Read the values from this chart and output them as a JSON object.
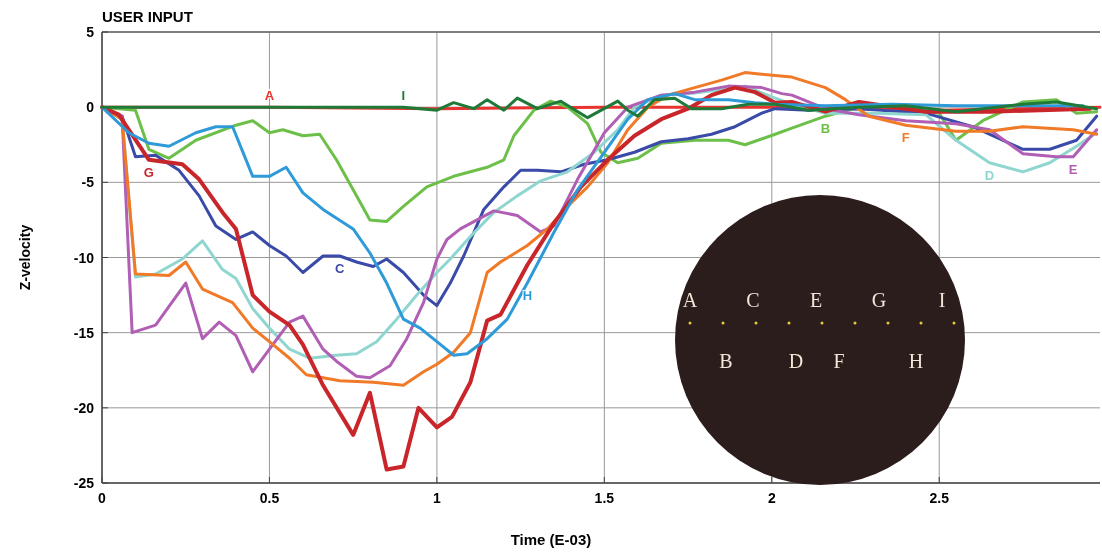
{
  "chart_data": {
    "type": "line",
    "title": "USER INPUT",
    "xlabel": "Time (E-03)",
    "ylabel": "Z-velocity",
    "xlim": [
      0,
      2.98
    ],
    "xticks": [
      0,
      0.5,
      1,
      1.5,
      2,
      2.5
    ],
    "ylim": [
      -25,
      5
    ],
    "yticks": [
      5,
      0,
      -5,
      -10,
      -15,
      -20,
      -25
    ],
    "grid": true,
    "legend": false,
    "marker": "none",
    "line_style": "solid",
    "series": [
      {
        "name": "A",
        "color": "#e8332e",
        "x": [
          0,
          0.5,
          1,
          1.5,
          2,
          2.5,
          2.98
        ],
        "values": [
          0,
          0,
          -0.1,
          0,
          0,
          -0.2,
          0
        ]
      },
      {
        "name": "B",
        "color": "#6cc04a",
        "x": [
          0,
          0.1,
          0.14,
          0.2,
          0.28,
          0.4,
          0.45,
          0.5,
          0.54,
          0.6,
          0.65,
          0.7,
          0.75,
          0.8,
          0.85,
          0.9,
          0.97,
          1.05,
          1.15,
          1.2,
          1.23,
          1.29,
          1.34,
          1.39,
          1.45,
          1.49,
          1.54,
          1.6,
          1.67,
          1.77,
          1.87,
          1.92,
          2.01,
          2.06,
          2.16,
          2.26,
          2.4,
          2.5,
          2.55,
          2.63,
          2.75,
          2.85,
          2.91,
          2.97
        ],
        "values": [
          0,
          -0.2,
          -2.8,
          -3.4,
          -2.2,
          -1.2,
          -0.9,
          -1.7,
          -1.5,
          -1.9,
          -1.8,
          -3.5,
          -5.5,
          -7.5,
          -7.6,
          -6.6,
          -5.3,
          -4.6,
          -4,
          -3.5,
          -1.9,
          -0.2,
          0.4,
          0,
          -1.1,
          -3,
          -3.7,
          -3.4,
          -2.4,
          -2.2,
          -2.2,
          -2.5,
          -1.8,
          -1.4,
          -0.6,
          0,
          0.1,
          -0.4,
          -2.2,
          -0.9,
          0.35,
          0.5,
          -0.4,
          -0.3
        ]
      },
      {
        "name": "C",
        "color": "#3a4aa8",
        "x": [
          0,
          0.06,
          0.1,
          0.16,
          0.23,
          0.29,
          0.34,
          0.4,
          0.45,
          0.5,
          0.55,
          0.6,
          0.66,
          0.71,
          0.76,
          0.81,
          0.85,
          0.9,
          0.96,
          1.0,
          1.04,
          1.08,
          1.14,
          1.2,
          1.25,
          1.3,
          1.37,
          1.44,
          1.51,
          1.59,
          1.67,
          1.75,
          1.82,
          1.89,
          1.97,
          2.01,
          2.11,
          2.26,
          2.46,
          2.6,
          2.75,
          2.83,
          2.91,
          2.97
        ],
        "values": [
          0,
          -0.6,
          -3.3,
          -3.2,
          -4.2,
          -5.9,
          -7.9,
          -8.8,
          -8.3,
          -9.2,
          -9.9,
          -11,
          -9.9,
          -9.9,
          -10.3,
          -10.6,
          -10.1,
          -11,
          -12.5,
          -13.2,
          -11.7,
          -9.9,
          -6.8,
          -5.3,
          -4.2,
          -4.2,
          -4.3,
          -3.8,
          -3.5,
          -3,
          -2.3,
          -2.1,
          -1.8,
          -1.3,
          -0.4,
          -0.1,
          -0.2,
          -0.1,
          -0.4,
          -1.3,
          -2.8,
          -2.8,
          -2.2,
          -0.6
        ]
      },
      {
        "name": "D",
        "color": "#8fd6d0",
        "x": [
          0,
          0.06,
          0.1,
          0.16,
          0.24,
          0.3,
          0.36,
          0.4,
          0.45,
          0.5,
          0.56,
          0.62,
          0.7,
          0.76,
          0.82,
          0.88,
          0.94,
          1.0,
          1.04,
          1.1,
          1.17,
          1.24,
          1.31,
          1.39,
          1.47,
          1.54,
          1.59,
          1.67,
          1.75,
          1.83,
          1.92,
          2.01,
          2.06,
          2.16,
          2.31,
          2.46,
          2.55,
          2.65,
          2.75,
          2.83,
          2.91,
          2.97
        ],
        "values": [
          0,
          -0.8,
          -11.3,
          -11.1,
          -10.1,
          -8.9,
          -10.8,
          -11.4,
          -13.4,
          -14.7,
          -16.1,
          -16.7,
          -16.5,
          -16.4,
          -15.6,
          -14.1,
          -12.5,
          -11,
          -10.1,
          -8.6,
          -7,
          -5.9,
          -4.9,
          -4.3,
          -3,
          -1.5,
          0,
          0.8,
          0.9,
          1.1,
          1.4,
          0.6,
          0.2,
          -0.4,
          -0.4,
          -0.5,
          -2.2,
          -3.7,
          -4.3,
          -3.7,
          -2.6,
          -1.7
        ]
      },
      {
        "name": "E",
        "color": "#b05fb5",
        "x": [
          0,
          0.06,
          0.09,
          0.16,
          0.25,
          0.3,
          0.35,
          0.4,
          0.45,
          0.51,
          0.56,
          0.6,
          0.66,
          0.7,
          0.76,
          0.8,
          0.86,
          0.91,
          0.96,
          1.0,
          1.03,
          1.07,
          1.17,
          1.24,
          1.31,
          1.35,
          1.42,
          1.5,
          1.57,
          1.67,
          1.77,
          1.87,
          1.97,
          2.03,
          2.06,
          2.16,
          2.26,
          2.4,
          2.55,
          2.65,
          2.75,
          2.85,
          2.9,
          2.97
        ],
        "values": [
          0,
          -0.6,
          -15,
          -14.5,
          -11.7,
          -15.4,
          -14.3,
          -15.2,
          -17.6,
          -15.8,
          -14.3,
          -13.9,
          -16.1,
          -16.9,
          -17.9,
          -18,
          -17.2,
          -15.4,
          -13,
          -10.1,
          -8.8,
          -8.1,
          -6.9,
          -7.2,
          -8.3,
          -7.9,
          -4.8,
          -1.7,
          0,
          0.8,
          1,
          1.4,
          1.3,
          0.9,
          0.8,
          -0.1,
          -0.5,
          -0.9,
          -1.1,
          -1.5,
          -3.1,
          -3.3,
          -3.3,
          -1.5
        ]
      },
      {
        "name": "F",
        "color": "#f07a28",
        "x": [
          0,
          0.06,
          0.1,
          0.2,
          0.25,
          0.3,
          0.39,
          0.45,
          0.5,
          0.56,
          0.61,
          0.71,
          0.81,
          0.9,
          0.96,
          1.0,
          1.05,
          1.1,
          1.15,
          1.19,
          1.27,
          1.33,
          1.39,
          1.45,
          1.51,
          1.57,
          1.63,
          1.69,
          1.77,
          1.85,
          1.92,
          2.01,
          2.06,
          2.16,
          2.22,
          2.29,
          2.4,
          2.55,
          2.65,
          2.75,
          2.9,
          2.97
        ],
        "values": [
          0,
          -0.8,
          -11.1,
          -11.2,
          -10.3,
          -12.1,
          -13,
          -14.7,
          -15.6,
          -16.7,
          -17.8,
          -18.2,
          -18.3,
          -18.5,
          -17.6,
          -17.1,
          -16.3,
          -15,
          -11,
          -10.3,
          -9.2,
          -8.1,
          -6.6,
          -5.3,
          -3.7,
          -1.5,
          0,
          0.8,
          1.3,
          1.8,
          2.3,
          2.1,
          2,
          1.3,
          0.5,
          -0.6,
          -1.2,
          -1.6,
          -1.6,
          -1.3,
          -1.5,
          -1.8
        ]
      },
      {
        "name": "G",
        "color": "#c8262a",
        "x": [
          0,
          0.05,
          0.14,
          0.24,
          0.29,
          0.36,
          0.4,
          0.45,
          0.5,
          0.56,
          0.6,
          0.66,
          0.75,
          0.8,
          0.85,
          0.9,
          0.945,
          1.0,
          1.045,
          1.1,
          1.15,
          1.19,
          1.27,
          1.35,
          1.43,
          1.51,
          1.59,
          1.67,
          1.75,
          1.82,
          1.89,
          1.95,
          2.01,
          2.06,
          2.16,
          2.26,
          2.46,
          2.65,
          2.95
        ],
        "values": [
          0,
          -0.5,
          -3.5,
          -3.8,
          -4.8,
          -7,
          -8.1,
          -12.5,
          -13.6,
          -14.5,
          -15.8,
          -18.5,
          -21.8,
          -19,
          -24.1,
          -23.9,
          -20,
          -21.3,
          -20.6,
          -18.3,
          -14.2,
          -13.8,
          -10.5,
          -7.7,
          -5.3,
          -3.5,
          -1.9,
          -0.8,
          -0.1,
          0.8,
          1.3,
          1,
          0.3,
          0.35,
          -0.3,
          0.35,
          -0.3,
          -0.3,
          -0.1
        ]
      },
      {
        "name": "H",
        "color": "#2f9ad8",
        "x": [
          0,
          0.08,
          0.14,
          0.2,
          0.28,
          0.34,
          0.39,
          0.45,
          0.5,
          0.55,
          0.6,
          0.66,
          0.75,
          0.8,
          0.85,
          0.9,
          0.95,
          1.0,
          1.05,
          1.09,
          1.15,
          1.21,
          1.27,
          1.35,
          1.42,
          1.5,
          1.57,
          1.63,
          1.71,
          1.77,
          1.87,
          1.95,
          2.01,
          2.16,
          2.36,
          2.55,
          2.75,
          2.93
        ],
        "values": [
          0,
          -1.7,
          -2.4,
          -2.6,
          -1.7,
          -1.3,
          -1.3,
          -4.6,
          -4.6,
          -4,
          -5.7,
          -6.8,
          -8.1,
          -9.7,
          -11.7,
          -14.1,
          -14.7,
          -15.6,
          -16.5,
          -16.4,
          -15.4,
          -14.1,
          -11.7,
          -8.3,
          -5.5,
          -3,
          -0.8,
          0.5,
          0.9,
          0.5,
          0.5,
          0.3,
          0.2,
          0.1,
          0.2,
          0.1,
          0.1,
          0.1
        ]
      },
      {
        "name": "I",
        "color": "#1f7a3a",
        "x": [
          0,
          0.5,
          0.9,
          1.0,
          1.05,
          1.11,
          1.15,
          1.2,
          1.24,
          1.3,
          1.37,
          1.45,
          1.54,
          1.57,
          1.6,
          1.65,
          1.71,
          1.76,
          1.85,
          1.93,
          2.01,
          2.11,
          2.26,
          2.4,
          2.55,
          2.75,
          2.85,
          2.97
        ],
        "values": [
          0,
          0,
          0,
          -0.2,
          0.3,
          -0.1,
          0.5,
          -0.2,
          0.6,
          -0.1,
          0.4,
          -0.7,
          0.4,
          -0.2,
          -0.6,
          0.5,
          0.6,
          -0.1,
          -0.1,
          0.2,
          0.2,
          -0.2,
          0,
          0.1,
          -0.3,
          0.2,
          0.35,
          -0.1
        ]
      }
    ]
  }
}
